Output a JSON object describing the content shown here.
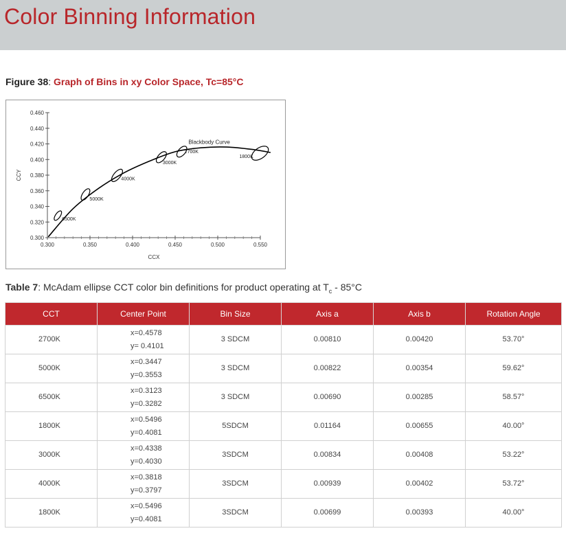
{
  "header": {
    "title": "Color Binning Information"
  },
  "figure": {
    "number": "Figure 38",
    "separator": ": ",
    "title": "Graph of Bins in xy Color Space, Tc=85°C"
  },
  "chart_data": {
    "type": "scatter",
    "xlabel": "CCX",
    "ylabel": "CCY",
    "xlim": [
      0.3,
      0.55
    ],
    "ylim": [
      0.3,
      0.46
    ],
    "x_ticks": [
      "0.300",
      "0.350",
      "0.400",
      "0.450",
      "0.500",
      "0.550"
    ],
    "y_ticks": [
      "0.300",
      "0.320",
      "0.340",
      "0.360",
      "0.380",
      "0.400",
      "0.420",
      "0.440",
      "0.460"
    ],
    "curve_label": "Blackbody Curve",
    "curve": [
      [
        0.301,
        0.301
      ],
      [
        0.33,
        0.337
      ],
      [
        0.36,
        0.363
      ],
      [
        0.39,
        0.383
      ],
      [
        0.42,
        0.398
      ],
      [
        0.45,
        0.41
      ],
      [
        0.48,
        0.415
      ],
      [
        0.51,
        0.416
      ],
      [
        0.54,
        0.413
      ],
      [
        0.562,
        0.409
      ]
    ],
    "bins": [
      {
        "label": "6500K",
        "x": 0.3123,
        "y": 0.3282,
        "a": 0.0069,
        "b": 0.00285,
        "angle": 58.57
      },
      {
        "label": "5000K",
        "x": 0.3447,
        "y": 0.3553,
        "a": 0.00822,
        "b": 0.00354,
        "angle": 59.62
      },
      {
        "label": "4000K",
        "x": 0.3818,
        "y": 0.3797,
        "a": 0.00939,
        "b": 0.00402,
        "angle": 53.72
      },
      {
        "label": "3000K",
        "x": 0.4338,
        "y": 0.403,
        "a": 0.00834,
        "b": 0.00408,
        "angle": 53.22
      },
      {
        "label": "2700K",
        "x": 0.4578,
        "y": 0.4101,
        "a": 0.0081,
        "b": 0.0042,
        "angle": 53.7
      },
      {
        "label": "1800K",
        "x": 0.5496,
        "y": 0.4081,
        "a": 0.01164,
        "b": 0.00655,
        "angle": 40.0
      }
    ]
  },
  "table_caption": {
    "number": "Table 7",
    "text": ": McAdam ellipse CCT color bin definitions for product operating at T",
    "sub": "c",
    "suffix": " - 85°C"
  },
  "table": {
    "headers": [
      "CCT",
      "Center Point",
      "Bin Size",
      "Axis a",
      "Axis b",
      "Rotation Angle"
    ],
    "rows": [
      {
        "cct": "2700K",
        "x": "x=0.4578",
        "y": "y= 0.4101",
        "bin": "3 SDCM",
        "a": "0.00810",
        "b": "0.00420",
        "angle": "53.70°"
      },
      {
        "cct": "5000K",
        "x": "x=0.3447",
        "y": "y=0.3553",
        "bin": "3 SDCM",
        "a": "0.00822",
        "b": "0.00354",
        "angle": "59.62°"
      },
      {
        "cct": "6500K",
        "x": "x=0.3123",
        "y": "y=0.3282",
        "bin": "3 SDCM",
        "a": "0.00690",
        "b": "0.00285",
        "angle": "58.57°"
      },
      {
        "cct": "1800K",
        "x": "x=0.5496",
        "y": "y=0.4081",
        "bin": "5SDCM",
        "a": "0.01164",
        "b": "0.00655",
        "angle": "40.00°"
      },
      {
        "cct": "3000K",
        "x": "x=0.4338",
        "y": "y=0.4030",
        "bin": "3SDCM",
        "a": "0.00834",
        "b": "0.00408",
        "angle": "53.22°"
      },
      {
        "cct": "4000K",
        "x": "x=0.3818",
        "y": "y=0.3797",
        "bin": "3SDCM",
        "a": "0.00939",
        "b": "0.00402",
        "angle": "53.72°"
      },
      {
        "cct": "1800K",
        "x": "x=0.5496",
        "y": "y=0.4081",
        "bin": "3SDCM",
        "a": "0.00699",
        "b": "0.00393",
        "angle": "40.00°"
      }
    ]
  }
}
